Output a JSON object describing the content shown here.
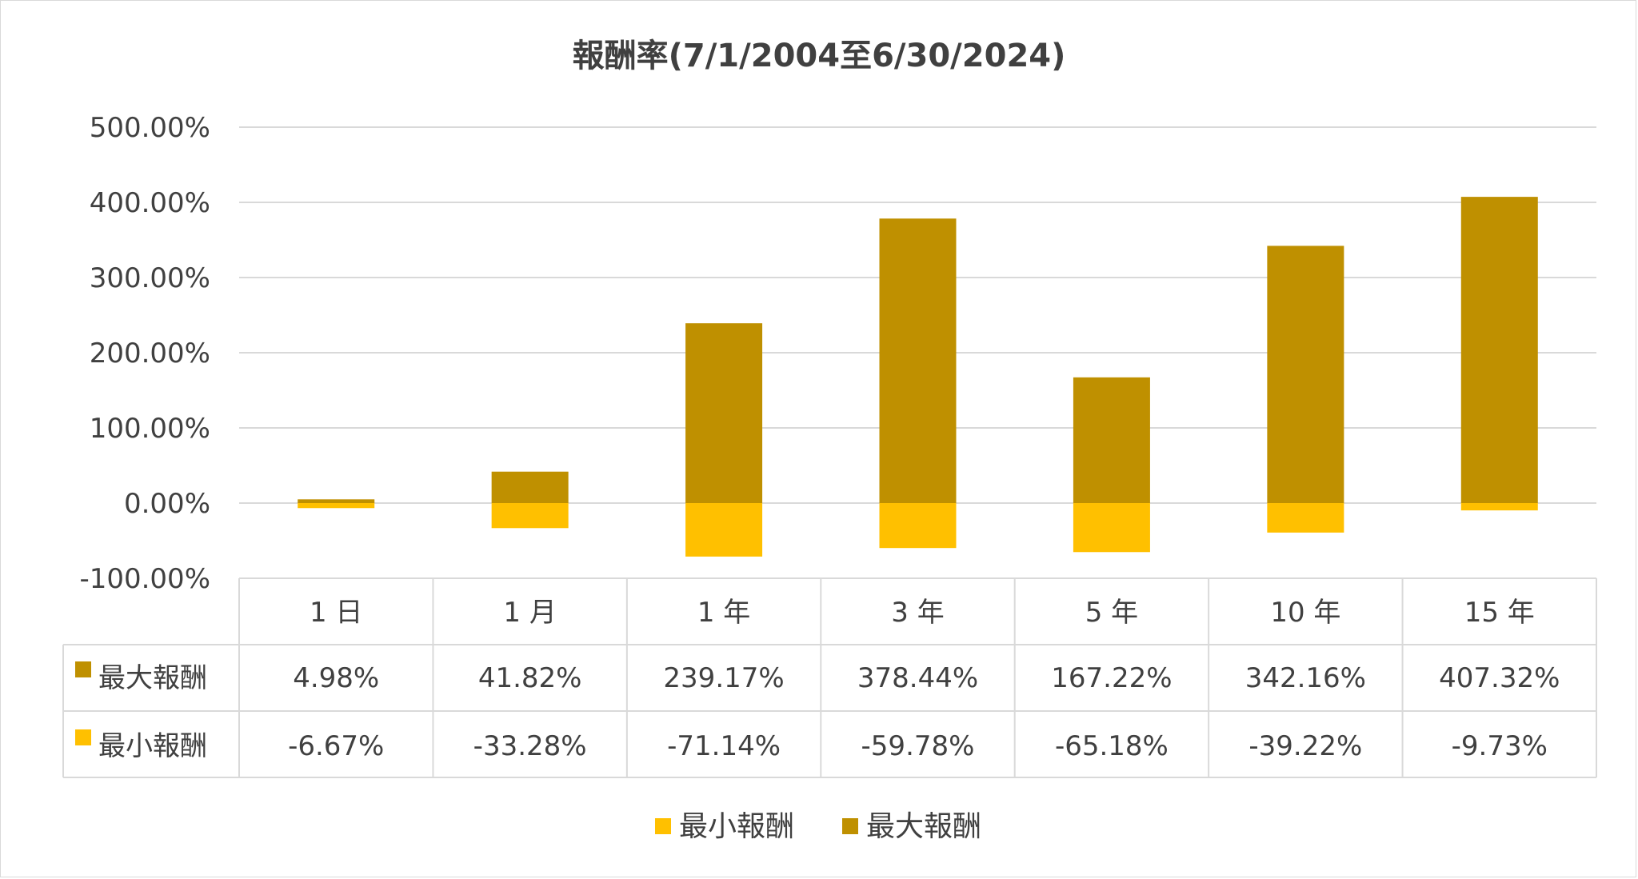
{
  "chart_data": {
    "type": "bar",
    "title": "報酬率(7/1/2004至6/30/2024)",
    "categories": [
      "1 日",
      "1 月",
      "1 年",
      "3 年",
      "5 年",
      "10 年",
      "15 年"
    ],
    "series": [
      {
        "name": "最大報酬",
        "color": "#BF9000",
        "values": [
          4.98,
          41.82,
          239.17,
          378.44,
          167.22,
          342.16,
          407.32
        ],
        "labels": [
          "4.98%",
          "41.82%",
          "239.17%",
          "378.44%",
          "167.22%",
          "342.16%",
          "407.32%"
        ]
      },
      {
        "name": "最小報酬",
        "color": "#FFC000",
        "values": [
          -6.67,
          -33.28,
          -71.14,
          -59.78,
          -65.18,
          -39.22,
          -9.73
        ],
        "labels": [
          "-6.67%",
          "-33.28%",
          "-71.14%",
          "-59.78%",
          "-65.18%",
          "-39.22%",
          "-9.73%"
        ]
      }
    ],
    "yaxis": {
      "ticks": [
        500,
        400,
        300,
        200,
        100,
        0,
        -100
      ],
      "tick_labels": [
        "500.00%",
        "400.00%",
        "300.00%",
        "200.00%",
        "100.00%",
        "0.00%",
        "-100.00%"
      ],
      "ylim": [
        -100,
        500
      ]
    },
    "grid": true,
    "data_table": true,
    "legend": {
      "placement": "bottom",
      "entries": [
        "最小報酬",
        "最大報酬"
      ]
    }
  }
}
